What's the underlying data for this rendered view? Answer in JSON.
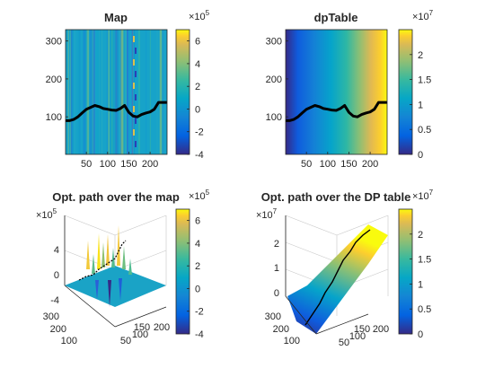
{
  "figure": {
    "panels": [
      {
        "title": "Map",
        "type": "heatmap-with-path",
        "xticks": [
          50,
          100,
          150,
          200
        ],
        "yticks": [
          100,
          200,
          300
        ],
        "xlim": [
          1,
          240
        ],
        "ylim": [
          1,
          330
        ],
        "colorbar": {
          "ticks": [
            -4,
            -2,
            0,
            2,
            4,
            6
          ],
          "lim": [
            -4,
            7
          ],
          "exponent_label": "×10",
          "exponent": "5"
        }
      },
      {
        "title": "dpTable",
        "type": "heatmap-with-path",
        "xticks": [
          50,
          100,
          150,
          200
        ],
        "yticks": [
          100,
          200,
          300
        ],
        "xlim": [
          1,
          240
        ],
        "ylim": [
          1,
          330
        ],
        "colorbar": {
          "ticks": [
            0,
            0.5,
            1,
            1.5,
            2
          ],
          "lim": [
            0,
            2.5
          ],
          "exponent_label": "×10",
          "exponent": "7"
        }
      },
      {
        "title": "Opt. path over the map",
        "type": "surface-3d",
        "zticks": [
          -4,
          0,
          4
        ],
        "z_exponent_label": "×10",
        "z_exponent": "5",
        "yticks": [
          100,
          200,
          300
        ],
        "xticks": [
          50,
          100,
          150,
          200
        ],
        "colorbar": {
          "ticks": [
            -4,
            -2,
            0,
            2,
            4,
            6
          ],
          "lim": [
            -4,
            7
          ],
          "exponent_label": "×10",
          "exponent": "5"
        }
      },
      {
        "title": "Opt. path over the DP table",
        "type": "surface-3d",
        "zticks": [
          0,
          1,
          2
        ],
        "z_exponent_label": "×10",
        "z_exponent": "7",
        "yticks": [
          100,
          200,
          300
        ],
        "xticks": [
          50,
          100,
          150,
          200
        ],
        "colorbar": {
          "ticks": [
            0,
            0.5,
            1,
            1.5,
            2
          ],
          "lim": [
            0,
            2.5
          ],
          "exponent_label": "×10",
          "exponent": "7"
        }
      }
    ]
  },
  "chart_data": {
    "type": "heatmap",
    "path": {
      "x": [
        1,
        10,
        20,
        30,
        40,
        50,
        60,
        70,
        80,
        90,
        100,
        110,
        120,
        130,
        140,
        150,
        160,
        170,
        180,
        190,
        200,
        210,
        220,
        230,
        240
      ],
      "y": [
        90,
        90,
        93,
        100,
        110,
        120,
        125,
        130,
        127,
        122,
        120,
        118,
        117,
        122,
        130,
        112,
        102,
        100,
        106,
        110,
        113,
        120,
        138,
        138,
        138
      ]
    },
    "map_range": [
      -4,
      7
    ],
    "dp_range": [
      0,
      2.5
    ]
  }
}
